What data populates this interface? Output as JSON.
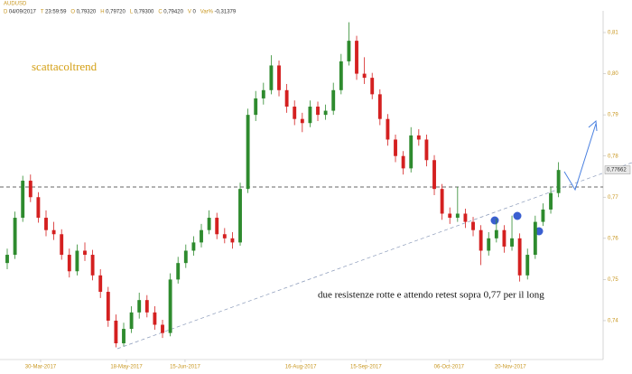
{
  "chart_data": {
    "type": "candlestick",
    "symbol": "AUDUSD",
    "info": [
      {
        "key": "D",
        "value": "04/09/2017"
      },
      {
        "key": "T",
        "value": "23:59:59"
      },
      {
        "key": "O",
        "value": "0,79320"
      },
      {
        "key": "H",
        "value": "0,79720"
      },
      {
        "key": "L",
        "value": "0,79300"
      },
      {
        "key": "C",
        "value": "0,79420"
      },
      {
        "key": "V",
        "value": "0"
      },
      {
        "key": "Var%",
        "value": "-0,31379"
      }
    ],
    "annotations": [
      "scattacoltrend",
      "due resistenze rotte e attendo retest sopra 0,77 per il long"
    ],
    "up_color": "#2e8b2e",
    "down_color": "#d42020",
    "ohlc": [
      [
        0.754,
        0.7575,
        0.7525,
        0.756
      ],
      [
        0.756,
        0.7665,
        0.755,
        0.765
      ],
      [
        0.765,
        0.7752,
        0.764,
        0.774
      ],
      [
        0.774,
        0.7755,
        0.7688,
        0.77
      ],
      [
        0.77,
        0.7712,
        0.7638,
        0.765
      ],
      [
        0.765,
        0.7668,
        0.7605,
        0.762
      ],
      [
        0.762,
        0.764,
        0.7596,
        0.761
      ],
      [
        0.761,
        0.7622,
        0.7548,
        0.756
      ],
      [
        0.756,
        0.7575,
        0.7505,
        0.752
      ],
      [
        0.752,
        0.7585,
        0.751,
        0.757
      ],
      [
        0.757,
        0.759,
        0.7545,
        0.756
      ],
      [
        0.756,
        0.7572,
        0.7498,
        0.751
      ],
      [
        0.751,
        0.7525,
        0.7455,
        0.747
      ],
      [
        0.747,
        0.7482,
        0.7385,
        0.74
      ],
      [
        0.74,
        0.7415,
        0.7335,
        0.7345
      ],
      [
        0.7345,
        0.7395,
        0.7338,
        0.738
      ],
      [
        0.738,
        0.7435,
        0.737,
        0.742
      ],
      [
        0.742,
        0.7468,
        0.7405,
        0.745
      ],
      [
        0.745,
        0.7462,
        0.7408,
        0.742
      ],
      [
        0.742,
        0.7435,
        0.7378,
        0.739
      ],
      [
        0.739,
        0.7402,
        0.7358,
        0.737
      ],
      [
        0.737,
        0.7515,
        0.7362,
        0.75
      ],
      [
        0.75,
        0.7555,
        0.749,
        0.754
      ],
      [
        0.754,
        0.7585,
        0.7528,
        0.757
      ],
      [
        0.757,
        0.7605,
        0.7558,
        0.759
      ],
      [
        0.759,
        0.7635,
        0.7578,
        0.762
      ],
      [
        0.762,
        0.7668,
        0.761,
        0.765
      ],
      [
        0.765,
        0.7662,
        0.7598,
        0.761
      ],
      [
        0.761,
        0.7625,
        0.7588,
        0.76
      ],
      [
        0.76,
        0.7615,
        0.7575,
        0.759
      ],
      [
        0.759,
        0.7735,
        0.7582,
        0.772
      ],
      [
        0.772,
        0.7915,
        0.771,
        0.79
      ],
      [
        0.79,
        0.7958,
        0.7885,
        0.794
      ],
      [
        0.794,
        0.7978,
        0.7925,
        0.796
      ],
      [
        0.796,
        0.8045,
        0.795,
        0.802
      ],
      [
        0.802,
        0.8032,
        0.7945,
        0.796
      ],
      [
        0.796,
        0.7975,
        0.7905,
        0.792
      ],
      [
        0.792,
        0.7935,
        0.7875,
        0.789
      ],
      [
        0.789,
        0.7905,
        0.7858,
        0.788
      ],
      [
        0.788,
        0.7935,
        0.787,
        0.792
      ],
      [
        0.792,
        0.7932,
        0.7885,
        0.79
      ],
      [
        0.79,
        0.7925,
        0.7888,
        0.791
      ],
      [
        0.791,
        0.7978,
        0.79,
        0.796
      ],
      [
        0.796,
        0.8048,
        0.795,
        0.803
      ],
      [
        0.803,
        0.8125,
        0.802,
        0.808
      ],
      [
        0.808,
        0.8092,
        0.7985,
        0.8
      ],
      [
        0.8,
        0.804,
        0.7975,
        0.799
      ],
      [
        0.799,
        0.8002,
        0.7938,
        0.795
      ],
      [
        0.795,
        0.7962,
        0.7875,
        0.789
      ],
      [
        0.789,
        0.7902,
        0.7825,
        0.784
      ],
      [
        0.784,
        0.7852,
        0.7785,
        0.78
      ],
      [
        0.78,
        0.7812,
        0.7755,
        0.777
      ],
      [
        0.777,
        0.787,
        0.776,
        0.785
      ],
      [
        0.785,
        0.7865,
        0.7825,
        0.784
      ],
      [
        0.784,
        0.7852,
        0.7775,
        0.779
      ],
      [
        0.779,
        0.7802,
        0.7705,
        0.772
      ],
      [
        0.772,
        0.7732,
        0.7645,
        0.766
      ],
      [
        0.766,
        0.7675,
        0.7635,
        0.765
      ],
      [
        0.765,
        0.7725,
        0.764,
        0.766
      ],
      [
        0.766,
        0.7672,
        0.7625,
        0.764
      ],
      [
        0.764,
        0.7652,
        0.7605,
        0.762
      ],
      [
        0.762,
        0.7632,
        0.7535,
        0.757
      ],
      [
        0.757,
        0.7615,
        0.7558,
        0.76
      ],
      [
        0.76,
        0.7648,
        0.759,
        0.762
      ],
      [
        0.762,
        0.7632,
        0.7565,
        0.758
      ],
      [
        0.758,
        0.7655,
        0.757,
        0.76
      ],
      [
        0.76,
        0.7612,
        0.7495,
        0.751
      ],
      [
        0.751,
        0.7575,
        0.75,
        0.756
      ],
      [
        0.756,
        0.7655,
        0.755,
        0.764
      ],
      [
        0.764,
        0.7685,
        0.763,
        0.767
      ],
      [
        0.767,
        0.7725,
        0.766,
        0.771
      ],
      [
        0.771,
        0.7785,
        0.77,
        0.7766
      ]
    ],
    "xlim": [
      -0.93,
      76.74
    ],
    "xticks": [
      {
        "value": 4.3,
        "label": "30-Mar-2017"
      },
      {
        "value": 15.35,
        "label": "18-May-2017"
      },
      {
        "value": 22.9,
        "label": "15-Jun-2017"
      },
      {
        "value": 37.8,
        "label": "16-Aug-2017"
      },
      {
        "value": 46.2,
        "label": "15-Sep-2017"
      },
      {
        "value": 56.9,
        "label": "06-Oct-2017"
      },
      {
        "value": 64.8,
        "label": "20-Nov-2017"
      }
    ],
    "ylim": [
      0.73055,
      0.81527
    ],
    "yticks": [
      {
        "value": 0.74,
        "label": "0,74"
      },
      {
        "value": 0.75,
        "label": "0,75"
      },
      {
        "value": 0.76,
        "label": "0,76"
      },
      {
        "value": 0.77,
        "label": "0,77"
      },
      {
        "value": 0.78,
        "label": "0,78"
      },
      {
        "value": 0.79,
        "label": "0,79"
      },
      {
        "value": 0.8,
        "label": "0,80"
      },
      {
        "value": 0.81,
        "label": "0,81"
      }
    ],
    "last_price": 0.77662,
    "last_price_label": "0,77662"
  }
}
